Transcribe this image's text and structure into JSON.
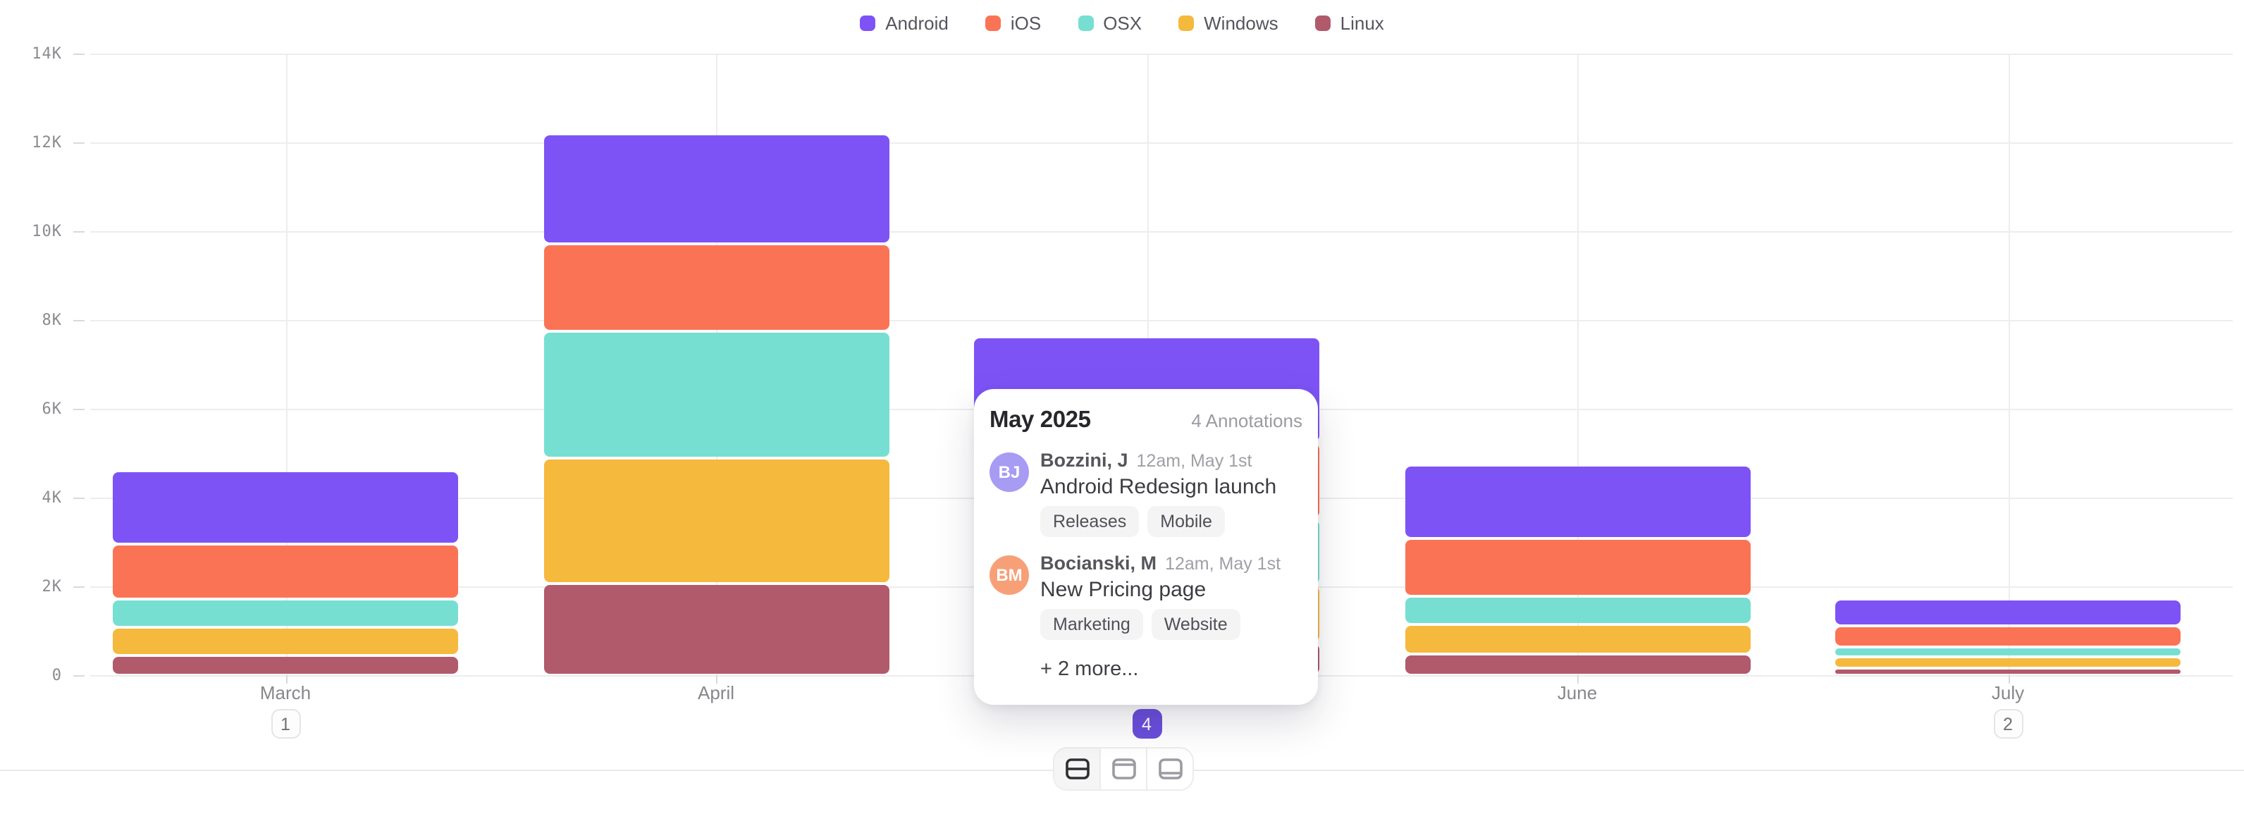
{
  "legend": [
    {
      "label": "Android",
      "color": "#7d53f6"
    },
    {
      "label": "iOS",
      "color": "#fb7355"
    },
    {
      "label": "OSX",
      "color": "#77dfd1"
    },
    {
      "label": "Windows",
      "color": "#f5b93d"
    },
    {
      "label": "Linux",
      "color": "#b15a6c"
    }
  ],
  "chart_data": {
    "type": "bar",
    "stacked": true,
    "categories": [
      "March",
      "April",
      "May",
      "June",
      "July"
    ],
    "series": [
      {
        "name": "Android",
        "color": "#7d53f6",
        "values": [
          1640,
          2500,
          2400,
          1650,
          600
        ]
      },
      {
        "name": "iOS",
        "color": "#fb7355",
        "values": [
          1230,
          1950,
          1700,
          1300,
          500
        ]
      },
      {
        "name": "OSX",
        "color": "#77dfd1",
        "values": [
          650,
          2850,
          1500,
          650,
          210
        ]
      },
      {
        "name": "Windows",
        "color": "#f5b93d",
        "values": [
          620,
          2850,
          1300,
          660,
          240
        ]
      },
      {
        "name": "Linux",
        "color": "#b15a6c",
        "values": [
          450,
          2050,
          730,
          480,
          170
        ]
      }
    ],
    "stack_order_bottom_to_top": [
      "Linux",
      "Windows",
      "OSX",
      "iOS",
      "Android"
    ],
    "y_ticks": [
      "14K",
      "12K",
      "10K",
      "8K",
      "6K",
      "4K",
      "2K",
      "0"
    ],
    "ylim": [
      0,
      14000
    ],
    "grid": true,
    "legend_position": "top-center"
  },
  "annotation_badges": [
    {
      "category": "March",
      "count": "1",
      "active": false
    },
    {
      "category": "May",
      "count": "4",
      "active": true
    },
    {
      "category": "July",
      "count": "2",
      "active": false
    }
  ],
  "tooltip": {
    "title": "May 2025",
    "count_label": "4 Annotations",
    "entries": [
      {
        "initials": "BJ",
        "avatar_color": "#a89bf4",
        "author": "Bozzini, J",
        "time": "12am, May 1st",
        "text": "Android Redesign launch",
        "tags": [
          "Releases",
          "Mobile"
        ]
      },
      {
        "initials": "BM",
        "avatar_color": "#f7a078",
        "author": "Bocianski, M",
        "time": "12am, May 1st",
        "text": "New Pricing page",
        "tags": [
          "Marketing",
          "Website"
        ]
      }
    ],
    "more_label": "+ 2 more..."
  },
  "layout_switcher": {
    "options": [
      {
        "name": "split-middle",
        "active": true
      },
      {
        "name": "split-top",
        "active": false
      },
      {
        "name": "split-bottom",
        "active": false
      }
    ]
  }
}
